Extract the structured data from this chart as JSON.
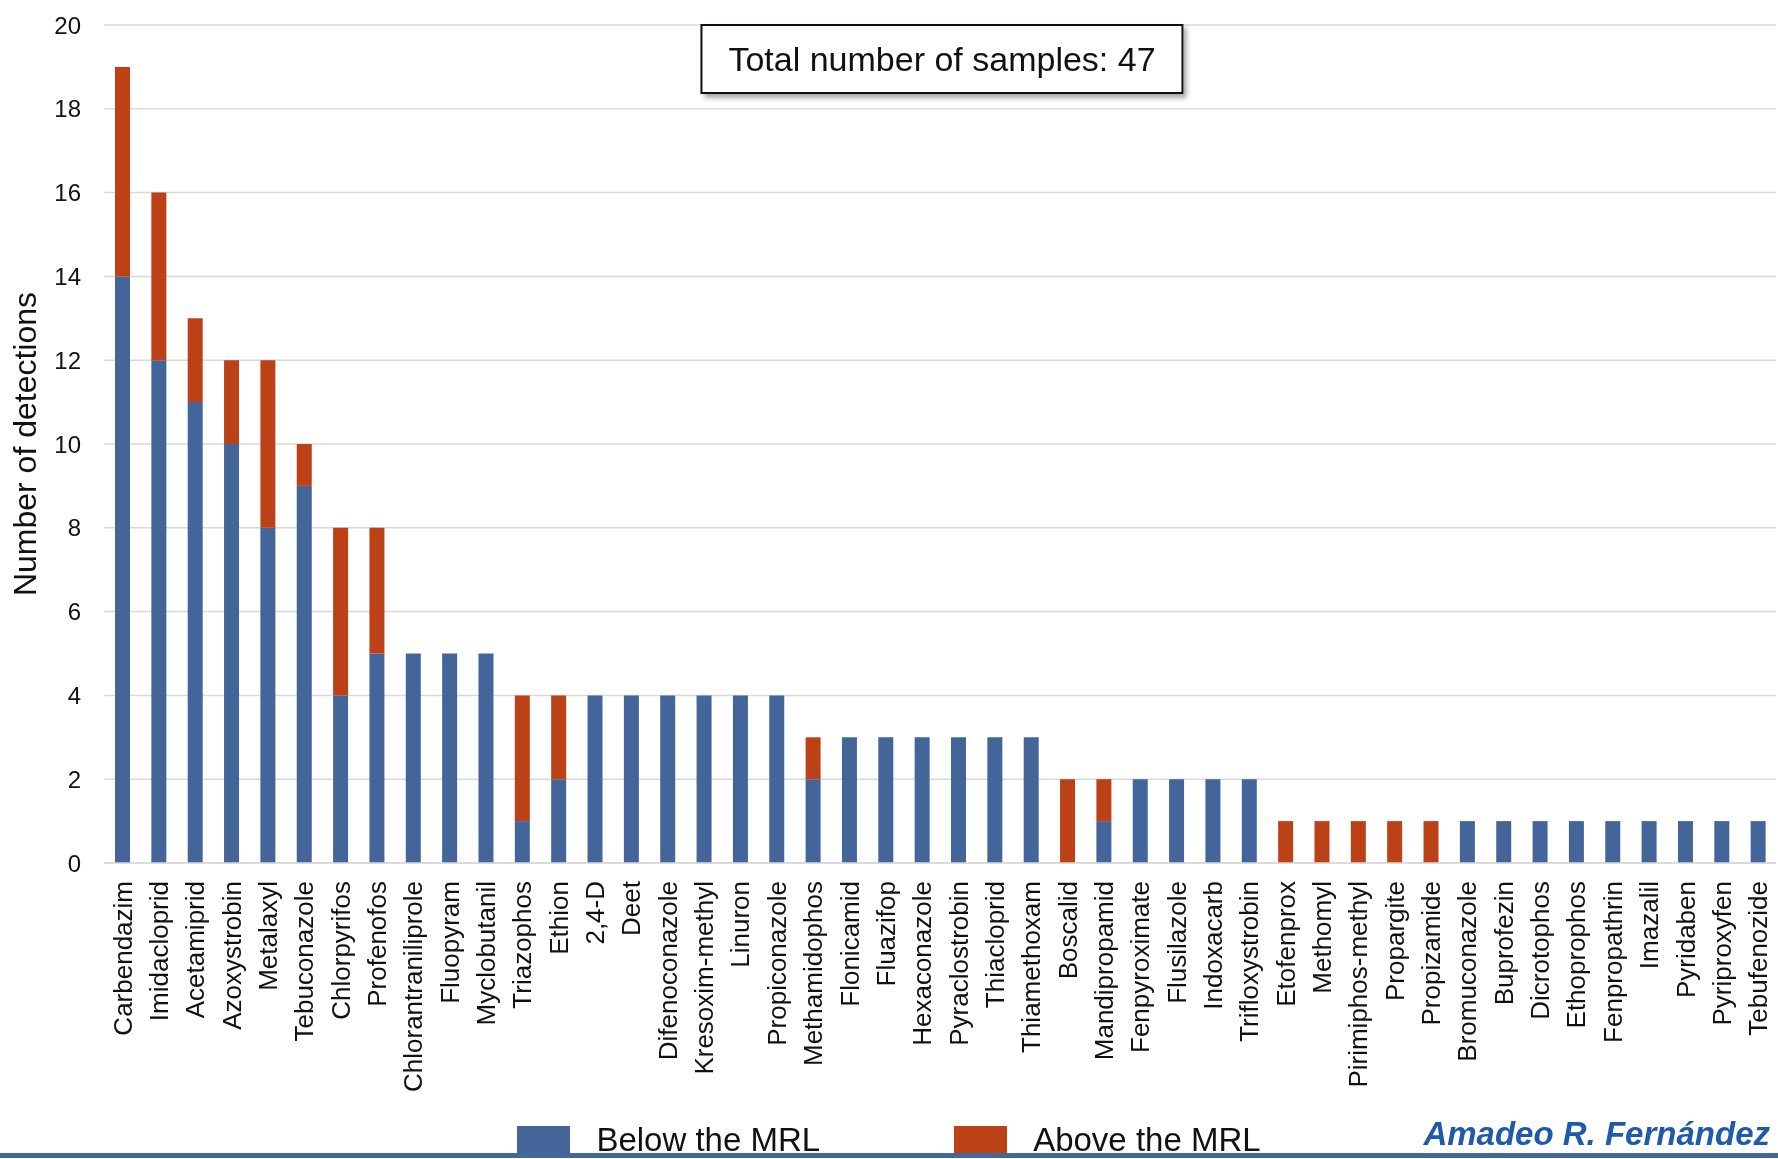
{
  "chart_data": {
    "type": "bar",
    "ylabel": "Number of detections",
    "annotations": [
      "Total number of samples: 47",
      "Amadeo R. Fernández"
    ],
    "categories": [
      "Carbendazim",
      "Imidacloprid",
      "Acetamiprid",
      "Azoxystrobin",
      "Metalaxyl",
      "Tebuconazole",
      "Chlorpyrifos",
      "Profenofos",
      "Chlorantraniliprole",
      "Fluopyram",
      "Myclobutanil",
      "Triazophos",
      "Ethion",
      "2,4-D",
      "Deet",
      "Difenoconazole",
      "Kresoxim-methyl",
      "Linuron",
      "Propiconazole",
      "Methamidophos",
      "Flonicamid",
      "Fluazifop",
      "Hexaconazole",
      "Pyraclostrobin",
      "Thiacloprid",
      "Thiamethoxam",
      "Boscalid",
      "Mandipropamid",
      "Fenpyroximate",
      "Flusilazole",
      "Indoxacarb",
      "Trifloxystrobin",
      "Etofenprox",
      "Methomyl",
      "Pirimiphos-methyl",
      "Propargite",
      "Propizamide",
      "Bromuconazole",
      "Buprofezin",
      "Dicrotophos",
      "Ethoprophos",
      "Fenpropathrin",
      "Imazalil",
      "Pyridaben",
      "Pyriproxyfen",
      "Tebufenozide"
    ],
    "series": [
      {
        "name": "Below the MRL",
        "color": "#436599",
        "values": [
          14,
          12,
          11,
          10,
          8,
          9,
          4,
          5,
          5,
          5,
          5,
          1,
          2,
          4,
          4,
          4,
          4,
          4,
          4,
          2,
          3,
          3,
          3,
          3,
          3,
          3,
          0,
          1,
          2,
          2,
          2,
          2,
          0,
          0,
          0,
          0,
          0,
          1,
          1,
          1,
          1,
          1,
          1,
          1,
          1,
          1
        ]
      },
      {
        "name": "Above the MRL",
        "color": "#bd4116",
        "values": [
          5,
          4,
          2,
          2,
          4,
          1,
          4,
          3,
          0,
          0,
          0,
          3,
          2,
          0,
          0,
          0,
          0,
          0,
          0,
          1,
          0,
          0,
          0,
          0,
          0,
          0,
          2,
          1,
          0,
          0,
          0,
          0,
          1,
          1,
          1,
          1,
          1,
          0,
          0,
          0,
          0,
          0,
          0,
          0,
          0,
          0
        ]
      }
    ],
    "stacked": true,
    "ylim": [
      0,
      20
    ],
    "yticks": [
      0,
      2,
      4,
      6,
      8,
      10,
      12,
      14,
      16,
      18,
      20
    ],
    "grid": "y",
    "legend": "bottom"
  }
}
